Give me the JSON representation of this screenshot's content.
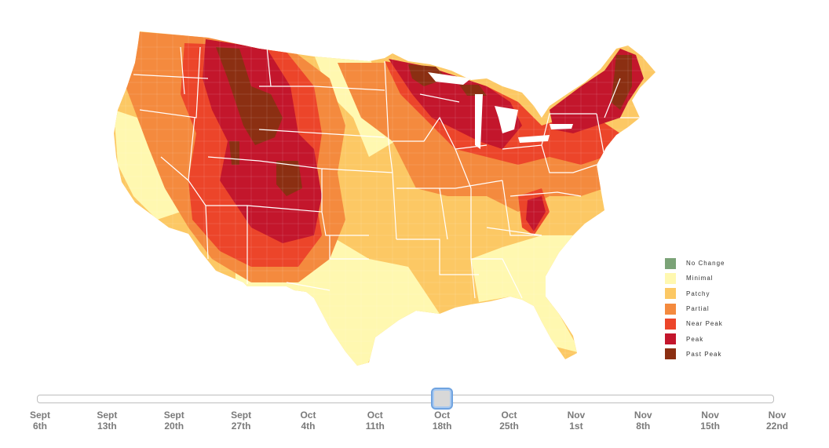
{
  "colors": {
    "no_change": "#7ba377",
    "minimal": "#fff8b0",
    "patchy": "#fcc864",
    "partial": "#f48a3e",
    "near_peak": "#ec452a",
    "peak": "#c3162c",
    "past_peak": "#8b2f12",
    "state_border": "#ffffff"
  },
  "legend": [
    {
      "key": "no_change",
      "label": "No Change"
    },
    {
      "key": "minimal",
      "label": "Minimal"
    },
    {
      "key": "patchy",
      "label": "Patchy"
    },
    {
      "key": "partial",
      "label": "Partial"
    },
    {
      "key": "near_peak",
      "label": "Near Peak"
    },
    {
      "key": "peak",
      "label": "Peak"
    },
    {
      "key": "past_peak",
      "label": "Past Peak"
    }
  ],
  "slider": {
    "selected_index": 6,
    "ticks": [
      {
        "line1": "Sept",
        "line2": "6th"
      },
      {
        "line1": "Sept",
        "line2": "13th"
      },
      {
        "line1": "Sept",
        "line2": "20th"
      },
      {
        "line1": "Sept",
        "line2": "27th"
      },
      {
        "line1": "Oct",
        "line2": "4th"
      },
      {
        "line1": "Oct",
        "line2": "11th"
      },
      {
        "line1": "Oct",
        "line2": "18th"
      },
      {
        "line1": "Oct",
        "line2": "25th"
      },
      {
        "line1": "Nov",
        "line2": "1st"
      },
      {
        "line1": "Nov",
        "line2": "8th"
      },
      {
        "line1": "Nov",
        "line2": "15th"
      },
      {
        "line1": "Nov",
        "line2": "22nd"
      }
    ]
  }
}
